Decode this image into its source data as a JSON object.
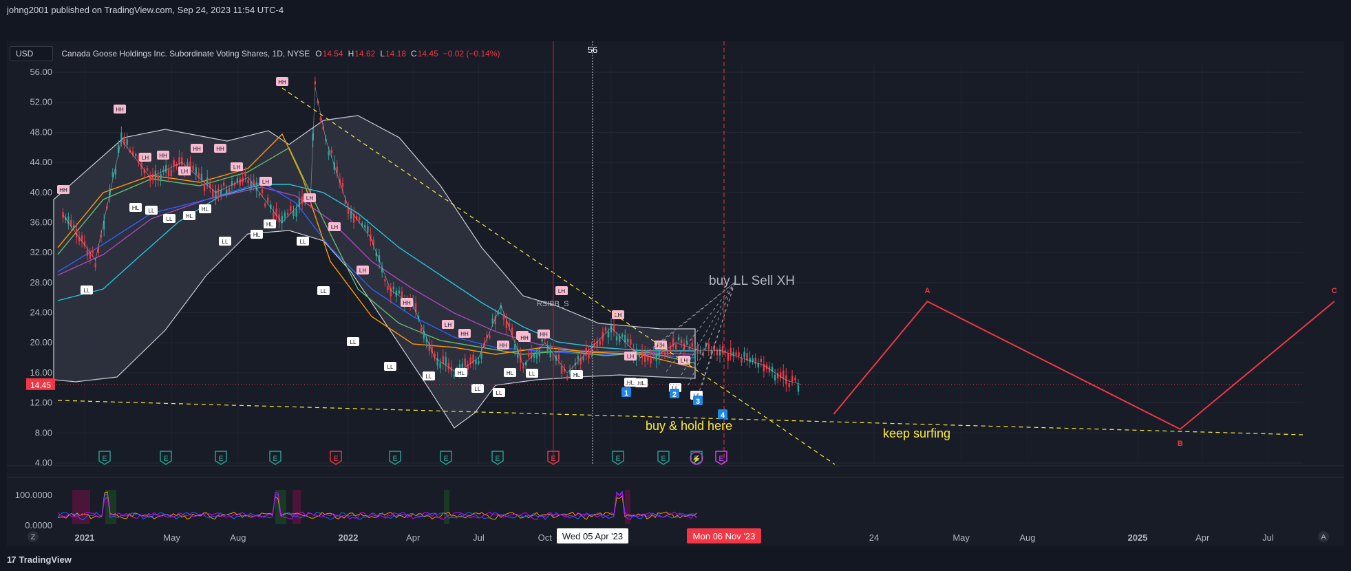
{
  "header": {
    "publish_line": "johng2001 published on TradingView.com, Sep 24, 2023 11:54 UTC-4"
  },
  "legend": {
    "currency": "USD",
    "title": "Canada Goose Holdings Inc. Subordinate Voting Shares, 1D, NYSE",
    "open_label": "O",
    "open": "14.54",
    "high_label": "H",
    "high": "14.62",
    "low_label": "L",
    "low": "14.18",
    "close_label": "C",
    "close": "14.45",
    "change": "−0.02 (−0.14%)"
  },
  "footer": {
    "brand": "TradingView",
    "brand_mark": "17",
    "left_btn": "Z",
    "right_btn": "A"
  },
  "colors": {
    "background": "#131722",
    "panel": "#181c27",
    "down": "#f23645",
    "up": "#26a69a",
    "annotation_yellow": "#ffeb3b",
    "wave_red": "#f23645",
    "bb_fill": "#2f3340"
  },
  "chart_data": {
    "type": "line",
    "title": "Canada Goose Holdings Inc. Subordinate Voting Shares, 1D, NYSE",
    "xlabel": "",
    "ylabel": "",
    "ylim": [
      4,
      58
    ],
    "y_ticks": [
      "56.00",
      "52.00",
      "48.00",
      "44.00",
      "40.00",
      "36.00",
      "32.00",
      "28.00",
      "24.00",
      "20.00",
      "16.00",
      "12.00",
      "8.00",
      "4.00"
    ],
    "x_ticks": [
      "2021",
      "May",
      "Aug",
      "2022",
      "Apr",
      "Jul",
      "Oct",
      "2023",
      "Jul",
      "24",
      "May",
      "Aug",
      "2025",
      "Apr",
      "Jul"
    ],
    "last_price_label": "14.45",
    "crosshair_top_label": "56",
    "date_label_1": "Wed 05 Apr '23",
    "date_label_2": "Mon 06 Nov '23",
    "grid": true,
    "series": [
      {
        "name": "price",
        "x": [
          "2020-12-01",
          "2021-01-15",
          "2021-02-20",
          "2021-04-01",
          "2021-05-15",
          "2021-07-01",
          "2021-08-15",
          "2021-10-01",
          "2021-11-10",
          "2021-11-16",
          "2021-12-01",
          "2022-01-01",
          "2022-02-01",
          "2022-03-01",
          "2022-04-01",
          "2022-05-01",
          "2022-06-01",
          "2022-07-01",
          "2022-08-01",
          "2022-09-01",
          "2022-10-01",
          "2022-11-01",
          "2022-12-01",
          "2023-01-01",
          "2023-02-01",
          "2023-03-01",
          "2023-04-01",
          "2023-05-01",
          "2023-06-01",
          "2023-07-01",
          "2023-08-01",
          "2023-09-01",
          "2023-09-22"
        ],
        "y": [
          37,
          31,
          47,
          42,
          44,
          40,
          42,
          36,
          40,
          54,
          47,
          38,
          34,
          27,
          25,
          18,
          16,
          18,
          25,
          17,
          20,
          16,
          19,
          22,
          19,
          18,
          20,
          19,
          19,
          18,
          17,
          15,
          14.45
        ]
      }
    ],
    "annotations": {
      "pivot_labels": [
        "HH",
        "LL",
        "HL",
        "LH"
      ],
      "wave_points": [
        {
          "label": "A",
          "date": "2024-03-15",
          "value": 25.5
        },
        {
          "label": "B",
          "date": "2025-03-01",
          "value": 8.5
        },
        {
          "label": "C",
          "date": "2025-10-01",
          "value": 25.5
        }
      ],
      "wave_start": {
        "label": "4",
        "date": "2023-11-06",
        "value": 10.5
      },
      "count_labels": [
        "1",
        "2",
        "3",
        "4"
      ],
      "text_notes": [
        "buy LL Sell XH",
        "buy & hold here",
        "keep surfing"
      ],
      "indicator_label": "RSIBB_S",
      "event_markers": [
        "E",
        "E",
        "E",
        "E",
        "E",
        "E",
        "E",
        "E",
        "E",
        "E",
        "E",
        "E",
        "E"
      ],
      "lightning_marker": "⚡"
    },
    "oscillator": {
      "ylim": [
        0,
        100
      ],
      "y_ticks": [
        "100.0000",
        "0.0000"
      ]
    }
  }
}
